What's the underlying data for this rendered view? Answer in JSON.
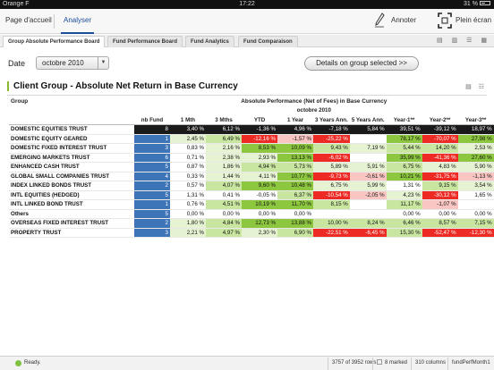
{
  "statusbar": {
    "carrier": "Orange F",
    "time": "17:22",
    "battery": "31 %"
  },
  "nav": {
    "home": "Page d'accueil",
    "analyze": "Analyser",
    "annotate": "Annoter",
    "fullscreen": "Plein écran"
  },
  "subtabs": [
    "Group Absolute Performance Board",
    "Fund Performance Board",
    "Fund Analytics",
    "Fund Comparaison"
  ],
  "controls": {
    "date_label": "Date",
    "date_value": "octobre 2010",
    "details_button": "Details on group selected >>"
  },
  "panel": {
    "title": "Client Group - Absolute Net Return in Base Currency",
    "group_header": "Group",
    "perf_header": "Absolute Performance (Net of Fees) in Base Currency",
    "period": "octobre 2010",
    "columns": [
      "nb Fund",
      "1 Mth",
      "3 Mths",
      "YTD",
      "1 Year",
      "3 Years Ann.",
      "5 Years Ann.",
      "Year-1**",
      "Year-2**",
      "Year-3**"
    ]
  },
  "colors": {
    "dark_green": "#8dc63f",
    "light_green": "#c9e6a0",
    "pale_green": "#e6f3d3",
    "red": "#ee2a24",
    "pink": "#f9c6c3",
    "blue": "#3d75b8"
  },
  "rows": [
    {
      "group": "DOMESTIC EQUITIES TRUST",
      "nb": "8",
      "values": [
        "3,40 %",
        "6,12 %",
        "-1,36 %",
        "4,96 %",
        "-7,18 %",
        "5,84 %",
        "39,51 %",
        "-39,12 %",
        "18,97 %"
      ],
      "shade": [
        "",
        "",
        "",
        "",
        "",
        "",
        "",
        "",
        ""
      ],
      "total": true
    },
    {
      "group": "DOMESTIC EQUITY GEARED",
      "nb": "1",
      "values": [
        "2,45 %",
        "6,49 %",
        "-12,16 %",
        "-1,57 %",
        "-25,22 %",
        "",
        "78,17 %",
        "-70,07 %",
        "27,98 %"
      ],
      "shade": [
        "pg",
        "lg",
        "r",
        "pk",
        "r",
        "",
        "dg",
        "r",
        "dg"
      ]
    },
    {
      "group": "DOMESTIC FIXED INTEREST TRUST",
      "nb": "3",
      "values": [
        "0,83 %",
        "2,16 %",
        "8,53 %",
        "10,09 %",
        "9,43 %",
        "7,19 %",
        "5,44 %",
        "14,20 %",
        "2,53 %"
      ],
      "shade": [
        "",
        "pg",
        "dg",
        "dg",
        "lg",
        "pg",
        "lg",
        "lg",
        "pg"
      ]
    },
    {
      "group": "EMERGING MARKETS TRUST",
      "nb": "6",
      "values": [
        "0,71 %",
        "2,38 %",
        "2,93 %",
        "13,13 %",
        "-6,02 %",
        "",
        "35,99 %",
        "-41,36 %",
        "27,60 %"
      ],
      "shade": [
        "",
        "pg",
        "pg",
        "dg",
        "r",
        "",
        "dg",
        "r",
        "dg"
      ]
    },
    {
      "group": "ENHANCED CASH TRUST",
      "nb": "5",
      "values": [
        "0,87 %",
        "1,86 %",
        "4,94 %",
        "5,73 %",
        "5,89 %",
        "5,91 %",
        "6,75 %",
        "4,83 %",
        "5,90 %"
      ],
      "shade": [
        "",
        "pg",
        "lg",
        "lg",
        "pg",
        "pg",
        "lg",
        "pg",
        "pg"
      ]
    },
    {
      "group": "GLOBAL SMALL COMPANIES TRUST",
      "nb": "4",
      "values": [
        "0,33 %",
        "1,44 %",
        "4,11 %",
        "10,77 %",
        "-9,73 %",
        "-0,61 %",
        "10,21 %",
        "-31,75 %",
        "-1,13 %"
      ],
      "shade": [
        "",
        "pg",
        "pg",
        "dg",
        "r",
        "pk",
        "dg",
        "r",
        "pk"
      ]
    },
    {
      "group": "INDEX LINKED BONDS TRUST",
      "nb": "2",
      "values": [
        "0,57 %",
        "4,07 %",
        "9,60 %",
        "10,48 %",
        "6,75 %",
        "5,99 %",
        "1,31 %",
        "9,15 %",
        "3,54 %"
      ],
      "shade": [
        "",
        "lg",
        "dg",
        "dg",
        "pg",
        "pg",
        "",
        "lg",
        "pg"
      ]
    },
    {
      "group": "INTL EQUITIES (HEDGED)",
      "nb": "5",
      "values": [
        "1,31 %",
        "0,41 %",
        "-0,05 %",
        "6,37 %",
        "-10,54 %",
        "-2,05 %",
        "4,23 %",
        "-30,12 %",
        "1,65 %"
      ],
      "shade": [
        "",
        "",
        "",
        "lg",
        "r",
        "pk",
        "pg",
        "r",
        ""
      ]
    },
    {
      "group": "INTL LINKED BOND TRUST",
      "nb": "1",
      "values": [
        "0,76 %",
        "4,51 %",
        "10,19 %",
        "11,70 %",
        "8,15 %",
        "",
        "11,17 %",
        "-1,07 %",
        ""
      ],
      "shade": [
        "",
        "lg",
        "dg",
        "dg",
        "lg",
        "",
        "lg",
        "pk",
        ""
      ]
    },
    {
      "group": "Others",
      "nb": "5",
      "values": [
        "0,00 %",
        "0,00 %",
        "0,00 %",
        "0,00 %",
        "",
        "",
        "0,00 %",
        "0,00 %",
        "0,00 %"
      ],
      "shade": [
        "",
        "",
        "",
        "",
        "",
        "",
        "",
        "",
        ""
      ]
    },
    {
      "group": "OVERSEAS FIXED INTEREST TRUST",
      "nb": "2",
      "values": [
        "1,80 %",
        "4,84 %",
        "12,73 %",
        "13,88 %",
        "10,00 %",
        "8,24 %",
        "6,46 %",
        "8,57 %",
        "7,15 %"
      ],
      "shade": [
        "pg",
        "lg",
        "dg",
        "dg",
        "lg",
        "lg",
        "lg",
        "lg",
        "lg"
      ]
    },
    {
      "group": "PROPERTY TRUST",
      "nb": "3",
      "values": [
        "2,21 %",
        "4,97 %",
        "2,30 %",
        "6,90 %",
        "-22,51 %",
        "-6,45 %",
        "15,30 %",
        "-52,47 %",
        "-12,30 %"
      ],
      "shade": [
        "pg",
        "lg",
        "pg",
        "lg",
        "r",
        "r",
        "lg",
        "r",
        "r"
      ]
    }
  ],
  "footer": {
    "ready": "Ready.",
    "rows": "3757 of 3952 rows",
    "marked": "8 marked",
    "columns": "310 columns",
    "file": "fundPerfMonth1"
  }
}
